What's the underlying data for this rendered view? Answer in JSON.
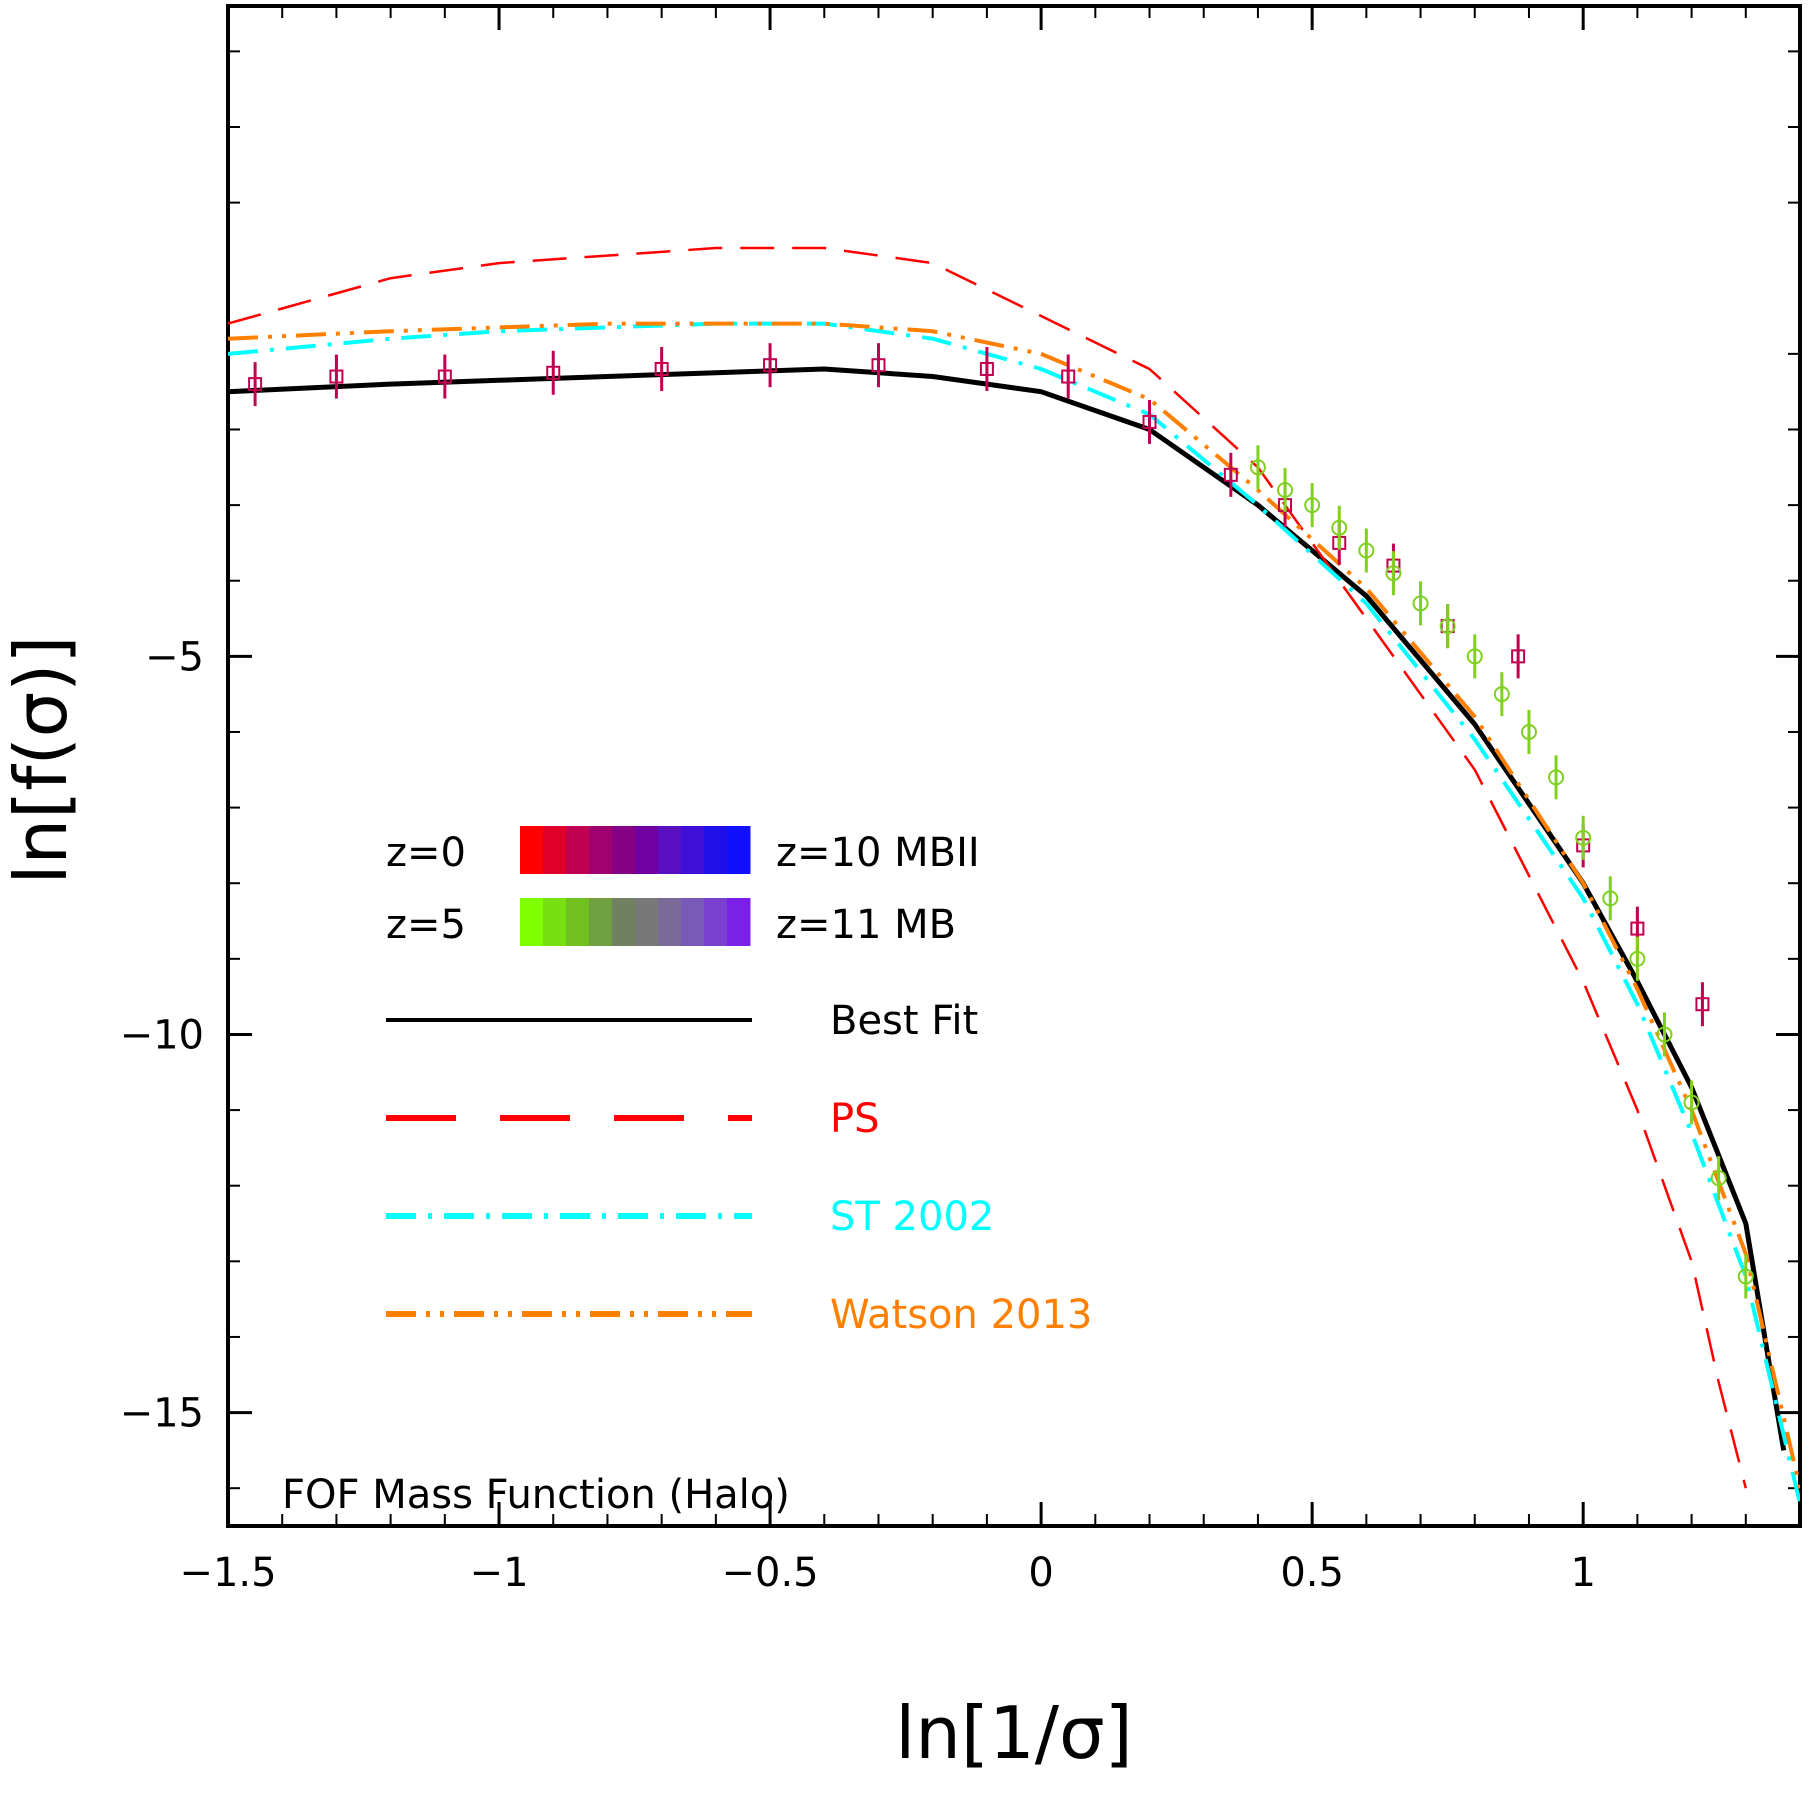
{
  "chart_data": {
    "type": "line",
    "title": "",
    "annotation": "FOF Mass Function (Halo)",
    "xlabel": "ln[1/σ]",
    "ylabel": "ln[f(σ)]",
    "xlim": [
      -1.5,
      1.4
    ],
    "ylim": [
      -16.5,
      3.6
    ],
    "x_ticks": [
      -1.5,
      -1,
      -0.5,
      0,
      0.5,
      1
    ],
    "x_tick_labels": [
      "−1.5",
      "−1",
      "−0.5",
      "0",
      "0.5",
      "1"
    ],
    "y_ticks": [
      -5,
      -10,
      -15
    ],
    "y_tick_labels": [
      "−5",
      "−10",
      "−15"
    ],
    "legend": {
      "placement": "center-left",
      "gradients": [
        {
          "start_label": "z=0",
          "end_label": "z=10 MBII",
          "colors": [
            "#ff0000",
            "#e0002a",
            "#c00050",
            "#a00070",
            "#850085",
            "#7000a0",
            "#5a10c0",
            "#4010d8",
            "#2010e8",
            "#1010ff"
          ]
        },
        {
          "start_label": "z=5",
          "end_label": "z=11 MB",
          "colors": [
            "#80ff00",
            "#78e010",
            "#70c020",
            "#70a040",
            "#708060",
            "#787878",
            "#7a6a98",
            "#7a5ab8",
            "#7a40d0",
            "#7a20e8"
          ]
        }
      ],
      "lines": [
        {
          "label": "Best Fit",
          "color": "#000000",
          "style": "solid"
        },
        {
          "label": "PS",
          "color": "#ff0000",
          "style": "dashed"
        },
        {
          "label": "ST 2002",
          "color": "#00ffff",
          "style": "dash-dot"
        },
        {
          "label": "Watson 2013",
          "color": "#ff8000",
          "style": "dash-dot-dot"
        }
      ]
    },
    "series": [
      {
        "name": "Best Fit",
        "color": "#000000",
        "x": [
          -1.5,
          -1.2,
          -1,
          -0.8,
          -0.6,
          -0.4,
          -0.2,
          0,
          0.2,
          0.4,
          0.6,
          0.8,
          1,
          1.1,
          1.2,
          1.3,
          1.37
        ],
        "y": [
          -1.5,
          -1.4,
          -1.35,
          -1.3,
          -1.25,
          -1.2,
          -1.3,
          -1.5,
          -2.0,
          -3.0,
          -4.2,
          -5.9,
          -8.0,
          -9.3,
          -10.7,
          -12.5,
          -15.5
        ]
      },
      {
        "name": "PS",
        "color": "#ff0000",
        "x": [
          -1.5,
          -1.2,
          -1,
          -0.8,
          -0.6,
          -0.4,
          -0.2,
          0,
          0.2,
          0.4,
          0.6,
          0.8,
          1,
          1.1,
          1.2,
          1.25,
          1.3
        ],
        "y": [
          -0.6,
          0.0,
          0.2,
          0.3,
          0.4,
          0.4,
          0.2,
          -0.5,
          -1.2,
          -2.5,
          -4.5,
          -6.5,
          -9.3,
          -11.0,
          -13.0,
          -14.6,
          -16.0
        ]
      },
      {
        "name": "ST 2002",
        "color": "#00ffff",
        "x": [
          -1.5,
          -1.2,
          -1,
          -0.8,
          -0.6,
          -0.4,
          -0.2,
          0,
          0.2,
          0.4,
          0.6,
          0.8,
          1,
          1.1,
          1.2,
          1.3,
          1.4
        ],
        "y": [
          -1.0,
          -0.8,
          -0.7,
          -0.65,
          -0.6,
          -0.6,
          -0.8,
          -1.2,
          -1.8,
          -3.0,
          -4.3,
          -6.1,
          -8.2,
          -9.6,
          -11.3,
          -13.2,
          -16.2
        ]
      },
      {
        "name": "Watson 2013",
        "color": "#ff8000",
        "x": [
          -1.5,
          -1.2,
          -1,
          -0.8,
          -0.6,
          -0.4,
          -0.2,
          0,
          0.2,
          0.4,
          0.6,
          0.8,
          1,
          1.1,
          1.2,
          1.3,
          1.4
        ],
        "y": [
          -0.8,
          -0.7,
          -0.65,
          -0.6,
          -0.6,
          -0.6,
          -0.7,
          -1.0,
          -1.6,
          -2.8,
          -4.1,
          -5.8,
          -8.0,
          -9.4,
          -11.0,
          -12.9,
          -16.0
        ]
      },
      {
        "name": "z=0–10 MBII",
        "color": "#c00050",
        "marker": "square",
        "x": [
          -1.45,
          -1.3,
          -1.1,
          -0.9,
          -0.7,
          -0.5,
          -0.3,
          -0.1,
          0.05,
          0.2,
          0.35,
          0.45,
          0.55,
          0.65,
          0.75,
          0.88,
          1.0,
          1.1,
          1.22
        ],
        "y": [
          -1.4,
          -1.3,
          -1.3,
          -1.25,
          -1.2,
          -1.15,
          -1.15,
          -1.2,
          -1.3,
          -1.9,
          -2.6,
          -3.0,
          -3.5,
          -3.8,
          -4.6,
          -5.0,
          -7.5,
          -8.6,
          -9.6
        ]
      },
      {
        "name": "z=5–11 MB",
        "color": "#80d020",
        "marker": "circle",
        "x": [
          0.4,
          0.45,
          0.5,
          0.55,
          0.6,
          0.65,
          0.7,
          0.75,
          0.8,
          0.85,
          0.9,
          0.95,
          1.0,
          1.05,
          1.1,
          1.15,
          1.2,
          1.25,
          1.3
        ],
        "y": [
          -2.5,
          -2.8,
          -3.0,
          -3.3,
          -3.6,
          -3.9,
          -4.3,
          -4.6,
          -5.0,
          -5.5,
          -6.0,
          -6.6,
          -7.4,
          -8.2,
          -9.0,
          -10.0,
          -10.9,
          -11.9,
          -13.2
        ]
      }
    ]
  }
}
